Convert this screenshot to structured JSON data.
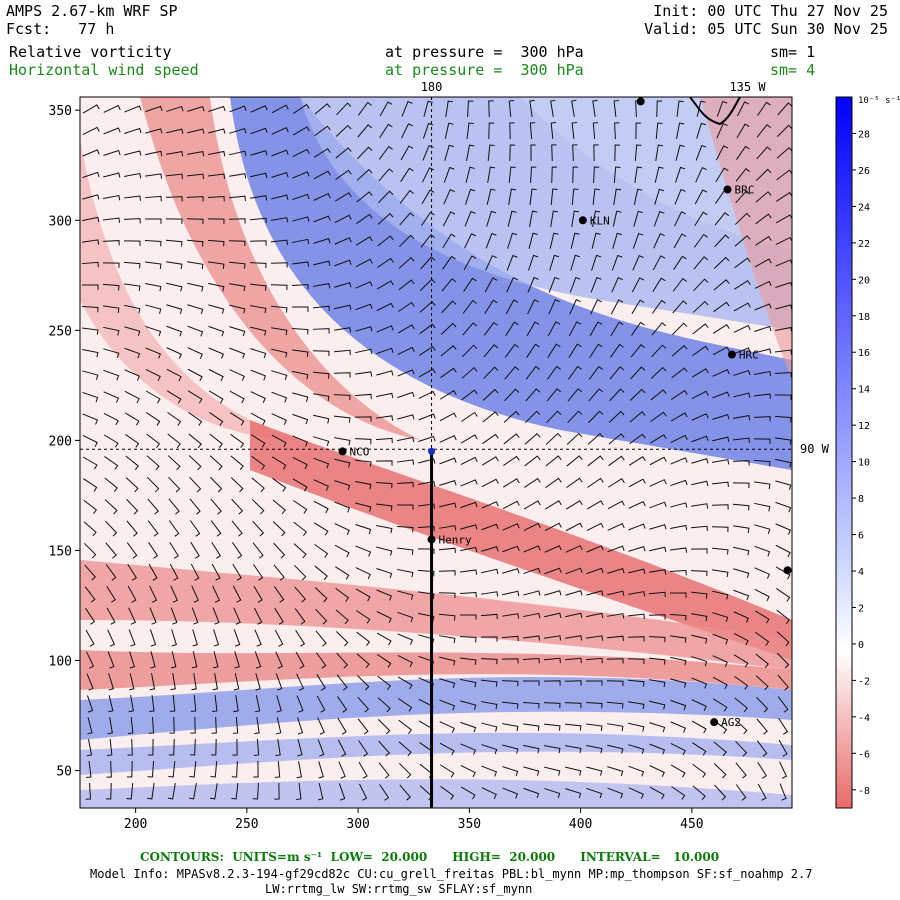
{
  "header": {
    "title": "AMPS 2.67-km WRF SP",
    "forecast": "Fcst:   77 h",
    "init": "Init: 00 UTC Thu 27 Nov 25",
    "valid": "Valid: 05 UTC Sun 30 Nov 25"
  },
  "fields": [
    {
      "name": "Relative vorticity",
      "level": "at pressure =  300 hPa",
      "smoothing": "sm= 1",
      "color": "#000000"
    },
    {
      "name": "Horizontal wind speed",
      "level": "at pressure =  300 hPa",
      "smoothing": "sm= 4",
      "color": "#1a8a1a"
    }
  ],
  "footer": {
    "contours": "CONTOURS:  UNITS=m s⁻¹  LOW=  20.000      HIGH=  20.000      INTERVAL=   10.000",
    "model_info": "Model Info: MPASv8.2.3-194-gf29cd82c CU:cu_grell_freitas PBL:bl_mynn MP:mp_thompson SF:sf_noahmp 2.7",
    "physics": "LW:rrtmg_lw SW:rrtmg_sw SFLAY:sf_mynn"
  },
  "chart_data": {
    "type": "heatmap",
    "xlim": [
      175,
      495
    ],
    "ylim": [
      33,
      356
    ],
    "x_ticks": [
      200,
      250,
      300,
      350,
      400,
      450
    ],
    "y_ticks": [
      50,
      100,
      150,
      200,
      250,
      300,
      350
    ],
    "colorbar": {
      "unit": "10⁻⁵ s⁻¹",
      "ticks": [
        -8,
        -6,
        -4,
        -2,
        0,
        2,
        4,
        6,
        8,
        10,
        12,
        14,
        16,
        18,
        20,
        22,
        24,
        26,
        28
      ],
      "range": [
        -9,
        30
      ],
      "neg_color": "#e05555",
      "zero_color": "#ffffff",
      "pos_color": "#0000ff"
    },
    "map_labels": [
      {
        "text": "180",
        "x": 333,
        "y": 356,
        "position": "top"
      },
      {
        "text": "135 W",
        "x": 475,
        "y": 356,
        "position": "top"
      },
      {
        "text": "90 W",
        "x": 495,
        "y": 196,
        "position": "right"
      }
    ],
    "stations": [
      {
        "name": "KLN",
        "x": 401,
        "y": 300
      },
      {
        "name": "BRC",
        "x": 466,
        "y": 314
      },
      {
        "name": "HRC",
        "x": 468,
        "y": 239
      },
      {
        "name": "NCO",
        "x": 293,
        "y": 195
      },
      {
        "name": "Henry",
        "x": 333,
        "y": 155
      },
      {
        "name": "AG2",
        "x": 460,
        "y": 72
      },
      {
        "name": "",
        "x": 427,
        "y": 354
      },
      {
        "name": "",
        "x": 493,
        "y": 141
      }
    ],
    "reference_lines": {
      "meridian_x": 333,
      "parallel_y": 196
    },
    "section_line": {
      "x": 333,
      "y_from": 33,
      "y_to": 195
    }
  }
}
